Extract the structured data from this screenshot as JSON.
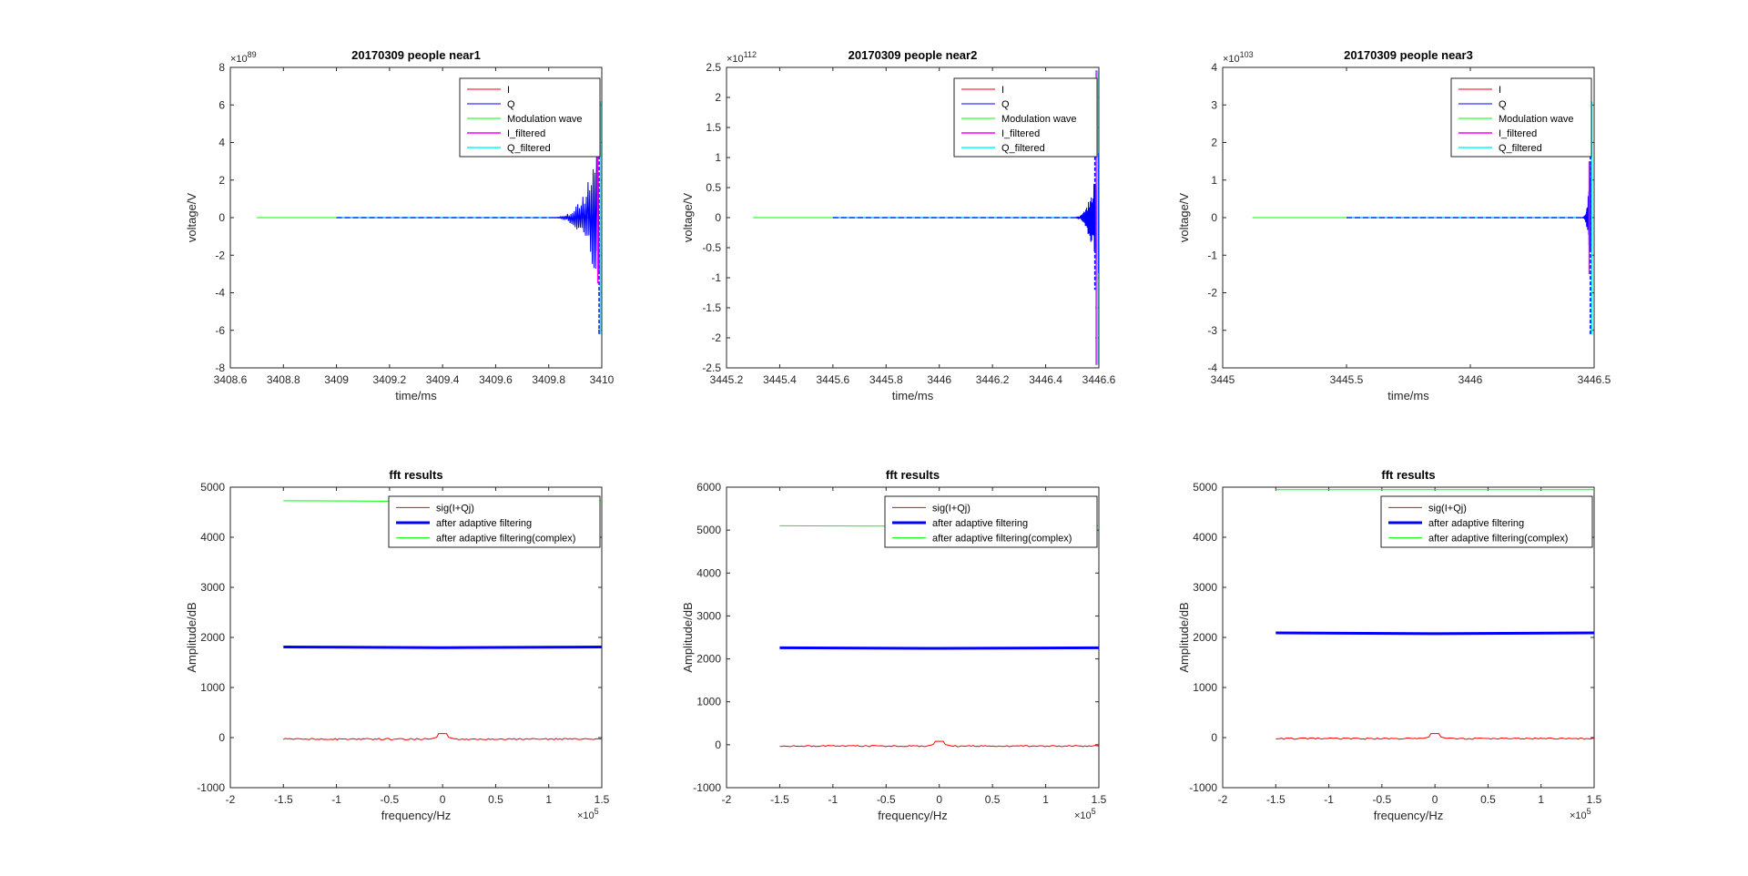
{
  "figure": {
    "background": "#ffffff"
  },
  "chart_data": [
    {
      "id": "ax1",
      "type": "line",
      "title": "20170309 people near1",
      "xlabel": "time/ms",
      "ylabel": "voltage/V",
      "xlim": [
        3408.6,
        3410
      ],
      "ylim": [
        -8,
        8
      ],
      "xticks": [
        3408.6,
        3408.8,
        3409,
        3409.2,
        3409.4,
        3409.6,
        3409.8,
        3410
      ],
      "xtick_labels": [
        "3408.6",
        "3408.8",
        "3409",
        "3409.2",
        "3409.4",
        "3409.6",
        "3409.8",
        "3410"
      ],
      "yticks": [
        -8,
        -6,
        -4,
        -2,
        0,
        2,
        4,
        6,
        8
      ],
      "ytick_labels": [
        "-8",
        "-6",
        "-4",
        "-2",
        "0",
        "2",
        "4",
        "6",
        "8"
      ],
      "y_exponent": "89",
      "x_exponent": "",
      "legend_position": "top-right",
      "series": [
        {
          "name": "I",
          "color": "#ff0000",
          "width": 1,
          "x": [
            3409.0,
            3409.97
          ],
          "y": [
            0,
            0
          ]
        },
        {
          "name": "Q",
          "color": "#0000ff",
          "width": 1,
          "x": [
            3409.0,
            3409.97
          ],
          "y": [
            0,
            0
          ]
        },
        {
          "name": "Modulation wave",
          "color": "#00ff00",
          "width": 1,
          "x": [
            3408.7,
            3409.97
          ],
          "y": [
            0,
            0
          ]
        },
        {
          "name": "I_filtered",
          "color": "#ff00ff",
          "width": 1.5,
          "x": [
            3409.0,
            3409.97
          ],
          "y": [
            0,
            0
          ]
        },
        {
          "name": "Q_filtered",
          "color": "#00ffff",
          "width": 1.5,
          "x": [
            3409.0,
            3409.97
          ],
          "y": [
            0,
            0
          ]
        }
      ],
      "spike": {
        "x_start": 3409.8,
        "x_end": 3409.99,
        "peaks": [
          {
            "color": "#0000ff",
            "amp": 6.2,
            "x": 3409.99
          },
          {
            "color": "#00ffff",
            "amp": 6.2,
            "x": 3409.995
          },
          {
            "color": "#ff00ff",
            "amp": 3.5,
            "x": 3409.985
          }
        ]
      }
    },
    {
      "id": "ax2",
      "type": "line",
      "title": "20170309 people near2",
      "xlabel": "time/ms",
      "ylabel": "voltage/V",
      "xlim": [
        3445.2,
        3446.6
      ],
      "ylim": [
        -2.5,
        2.5
      ],
      "xticks": [
        3445.2,
        3445.4,
        3445.6,
        3445.8,
        3446,
        3446.2,
        3446.4,
        3446.6
      ],
      "xtick_labels": [
        "3445.2",
        "3445.4",
        "3445.6",
        "3445.8",
        "3446",
        "3446.2",
        "3446.4",
        "3446.6"
      ],
      "yticks": [
        -2.5,
        -2,
        -1.5,
        -1,
        -0.5,
        0,
        0.5,
        1,
        1.5,
        2,
        2.5
      ],
      "ytick_labels": [
        "-2.5",
        "-2",
        "-1.5",
        "-1",
        "-0.5",
        "0",
        "0.5",
        "1",
        "1.5",
        "2",
        "2.5"
      ],
      "y_exponent": "112",
      "x_exponent": "",
      "legend_position": "top-right",
      "series": [
        {
          "name": "I",
          "color": "#ff0000",
          "width": 1,
          "x": [
            3445.6,
            3446.58
          ],
          "y": [
            0,
            0
          ]
        },
        {
          "name": "Q",
          "color": "#0000ff",
          "width": 1,
          "x": [
            3445.6,
            3446.58
          ],
          "y": [
            0,
            0
          ]
        },
        {
          "name": "Modulation wave",
          "color": "#00ff00",
          "width": 1,
          "x": [
            3445.3,
            3446.58
          ],
          "y": [
            0,
            0
          ]
        },
        {
          "name": "I_filtered",
          "color": "#ff00ff",
          "width": 1.5,
          "x": [
            3445.6,
            3446.58
          ],
          "y": [
            0,
            0
          ]
        },
        {
          "name": "Q_filtered",
          "color": "#00ffff",
          "width": 1.5,
          "x": [
            3445.6,
            3446.58
          ],
          "y": [
            0,
            0
          ]
        }
      ],
      "spike": {
        "x_start": 3446.5,
        "x_end": 3446.6,
        "peaks": [
          {
            "color": "#ff00ff",
            "amp": 2.45,
            "x": 3446.59
          },
          {
            "color": "#00ffff",
            "amp": 2.45,
            "x": 3446.595
          },
          {
            "color": "#0000ff",
            "amp": 1.2,
            "x": 3446.585
          }
        ]
      }
    },
    {
      "id": "ax3",
      "type": "line",
      "title": "20170309 people near3",
      "xlabel": "time/ms",
      "ylabel": "voltage/V",
      "xlim": [
        3445,
        3446.5
      ],
      "ylim": [
        -4,
        4
      ],
      "xticks": [
        3445,
        3445.5,
        3446,
        3446.5
      ],
      "xtick_labels": [
        "3445",
        "3445.5",
        "3446",
        "3446.5"
      ],
      "yticks": [
        -4,
        -3,
        -2,
        -1,
        0,
        1,
        2,
        3,
        4
      ],
      "ytick_labels": [
        "-4",
        "-3",
        "-2",
        "-1",
        "0",
        "1",
        "2",
        "3",
        "4"
      ],
      "y_exponent": "103",
      "x_exponent": "",
      "legend_position": "top-right",
      "series": [
        {
          "name": "I",
          "color": "#ff0000",
          "width": 1,
          "x": [
            3445.5,
            3446.48
          ],
          "y": [
            0,
            0
          ]
        },
        {
          "name": "Q",
          "color": "#0000ff",
          "width": 1,
          "x": [
            3445.5,
            3446.48
          ],
          "y": [
            0,
            0
          ]
        },
        {
          "name": "Modulation wave",
          "color": "#00ff00",
          "width": 1,
          "x": [
            3445.12,
            3446.48
          ],
          "y": [
            0,
            0
          ]
        },
        {
          "name": "I_filtered",
          "color": "#ff00ff",
          "width": 1.5,
          "x": [
            3445.5,
            3446.48
          ],
          "y": [
            0,
            0
          ]
        },
        {
          "name": "Q_filtered",
          "color": "#00ffff",
          "width": 1.5,
          "x": [
            3445.5,
            3446.48
          ],
          "y": [
            0,
            0
          ]
        }
      ],
      "spike": {
        "x_start": 3446.45,
        "x_end": 3446.49,
        "peaks": [
          {
            "color": "#00ffff",
            "amp": 3.1,
            "x": 3446.49
          },
          {
            "color": "#0000ff",
            "amp": 3.1,
            "x": 3446.485
          },
          {
            "color": "#ff00ff",
            "amp": 1.5,
            "x": 3446.48
          }
        ]
      }
    },
    {
      "id": "ax4",
      "type": "line",
      "title": "fft results",
      "xlabel": "frequency/Hz",
      "ylabel": "Amplitude/dB",
      "xlim": [
        -2,
        1.5
      ],
      "ylim": [
        -1000,
        5000
      ],
      "xticks": [
        -2,
        -1.5,
        -1,
        -0.5,
        0,
        0.5,
        1,
        1.5
      ],
      "xtick_labels": [
        "-2",
        "-1.5",
        "-1",
        "-0.5",
        "0",
        "0.5",
        "1",
        "1.5"
      ],
      "yticks": [
        -1000,
        0,
        1000,
        2000,
        3000,
        4000,
        5000
      ],
      "ytick_labels": [
        "-1000",
        "0",
        "1000",
        "2000",
        "3000",
        "4000",
        "5000"
      ],
      "x_exponent": "5",
      "y_exponent": "",
      "legend_position": "top-right",
      "series": [
        {
          "name": "sig(I+Qj)",
          "color": "#ff0000",
          "width": 1,
          "kind": "noisy",
          "x_range": [
            -1.5,
            1.5
          ],
          "level": -30,
          "peak": 80
        },
        {
          "name": "after adaptive filtering",
          "color": "#0000ff",
          "width": 3,
          "kind": "flat",
          "x": [
            -1.5,
            0,
            1.5
          ],
          "y": [
            1810,
            1795,
            1810
          ]
        },
        {
          "name": "after adaptive filtering(complex)",
          "color": "#00ff00",
          "width": 1,
          "kind": "flat",
          "x": [
            -1.5,
            0,
            1.5
          ],
          "y": [
            4730,
            4715,
            4730
          ]
        }
      ]
    },
    {
      "id": "ax5",
      "type": "line",
      "title": "fft results",
      "xlabel": "frequency/Hz",
      "ylabel": "Amplitude/dB",
      "xlim": [
        -2,
        1.5
      ],
      "ylim": [
        -1000,
        6000
      ],
      "xticks": [
        -2,
        -1.5,
        -1,
        -0.5,
        0,
        0.5,
        1,
        1.5
      ],
      "xtick_labels": [
        "-2",
        "-1.5",
        "-1",
        "-0.5",
        "0",
        "0.5",
        "1",
        "1.5"
      ],
      "yticks": [
        -1000,
        0,
        1000,
        2000,
        3000,
        4000,
        5000,
        6000
      ],
      "ytick_labels": [
        "-1000",
        "0",
        "1000",
        "2000",
        "3000",
        "4000",
        "5000",
        "6000"
      ],
      "x_exponent": "5",
      "y_exponent": "",
      "legend_position": "top-right",
      "series": [
        {
          "name": "sig(I+Qj)",
          "color": "#ff0000",
          "width": 1,
          "kind": "noisy",
          "x_range": [
            -1.5,
            1.5
          ],
          "level": -30,
          "peak": 80
        },
        {
          "name": "after adaptive filtering",
          "color": "#0000ff",
          "width": 3,
          "kind": "flat",
          "x": [
            -1.5,
            0,
            1.5
          ],
          "y": [
            2260,
            2245,
            2260
          ]
        },
        {
          "name": "after adaptive filtering(complex)",
          "color": "#00ff00",
          "width": 1,
          "kind": "flat",
          "x": [
            -1.5,
            0,
            1.5
          ],
          "y": [
            5100,
            5090,
            5100
          ]
        }
      ]
    },
    {
      "id": "ax6",
      "type": "line",
      "title": "fft results",
      "xlabel": "frequency/Hz",
      "ylabel": "Amplitude/dB",
      "xlim": [
        -2,
        1.5
      ],
      "ylim": [
        -1000,
        5000
      ],
      "xticks": [
        -2,
        -1.5,
        -1,
        -0.5,
        0,
        0.5,
        1,
        1.5
      ],
      "xtick_labels": [
        "-2",
        "-1.5",
        "-1",
        "-0.5",
        "0",
        "0.5",
        "1",
        "1.5"
      ],
      "yticks": [
        -1000,
        0,
        1000,
        2000,
        3000,
        4000,
        5000
      ],
      "ytick_labels": [
        "-1000",
        "0",
        "1000",
        "2000",
        "3000",
        "4000",
        "5000"
      ],
      "x_exponent": "5",
      "y_exponent": "",
      "legend_position": "top-right",
      "series": [
        {
          "name": "sig(I+Qj)",
          "color": "#ff0000",
          "width": 1,
          "kind": "noisy",
          "x_range": [
            -1.5,
            1.5
          ],
          "level": -20,
          "peak": 80
        },
        {
          "name": "after adaptive filtering",
          "color": "#0000ff",
          "width": 3,
          "kind": "flat",
          "x": [
            -1.5,
            0,
            1.5
          ],
          "y": [
            2090,
            2075,
            2090
          ]
        },
        {
          "name": "after adaptive filtering(complex)",
          "color": "#00ff00",
          "width": 1,
          "kind": "flat",
          "x": [
            -1.5,
            0,
            1.5
          ],
          "y": [
            4950,
            4950,
            4950
          ]
        }
      ]
    }
  ]
}
